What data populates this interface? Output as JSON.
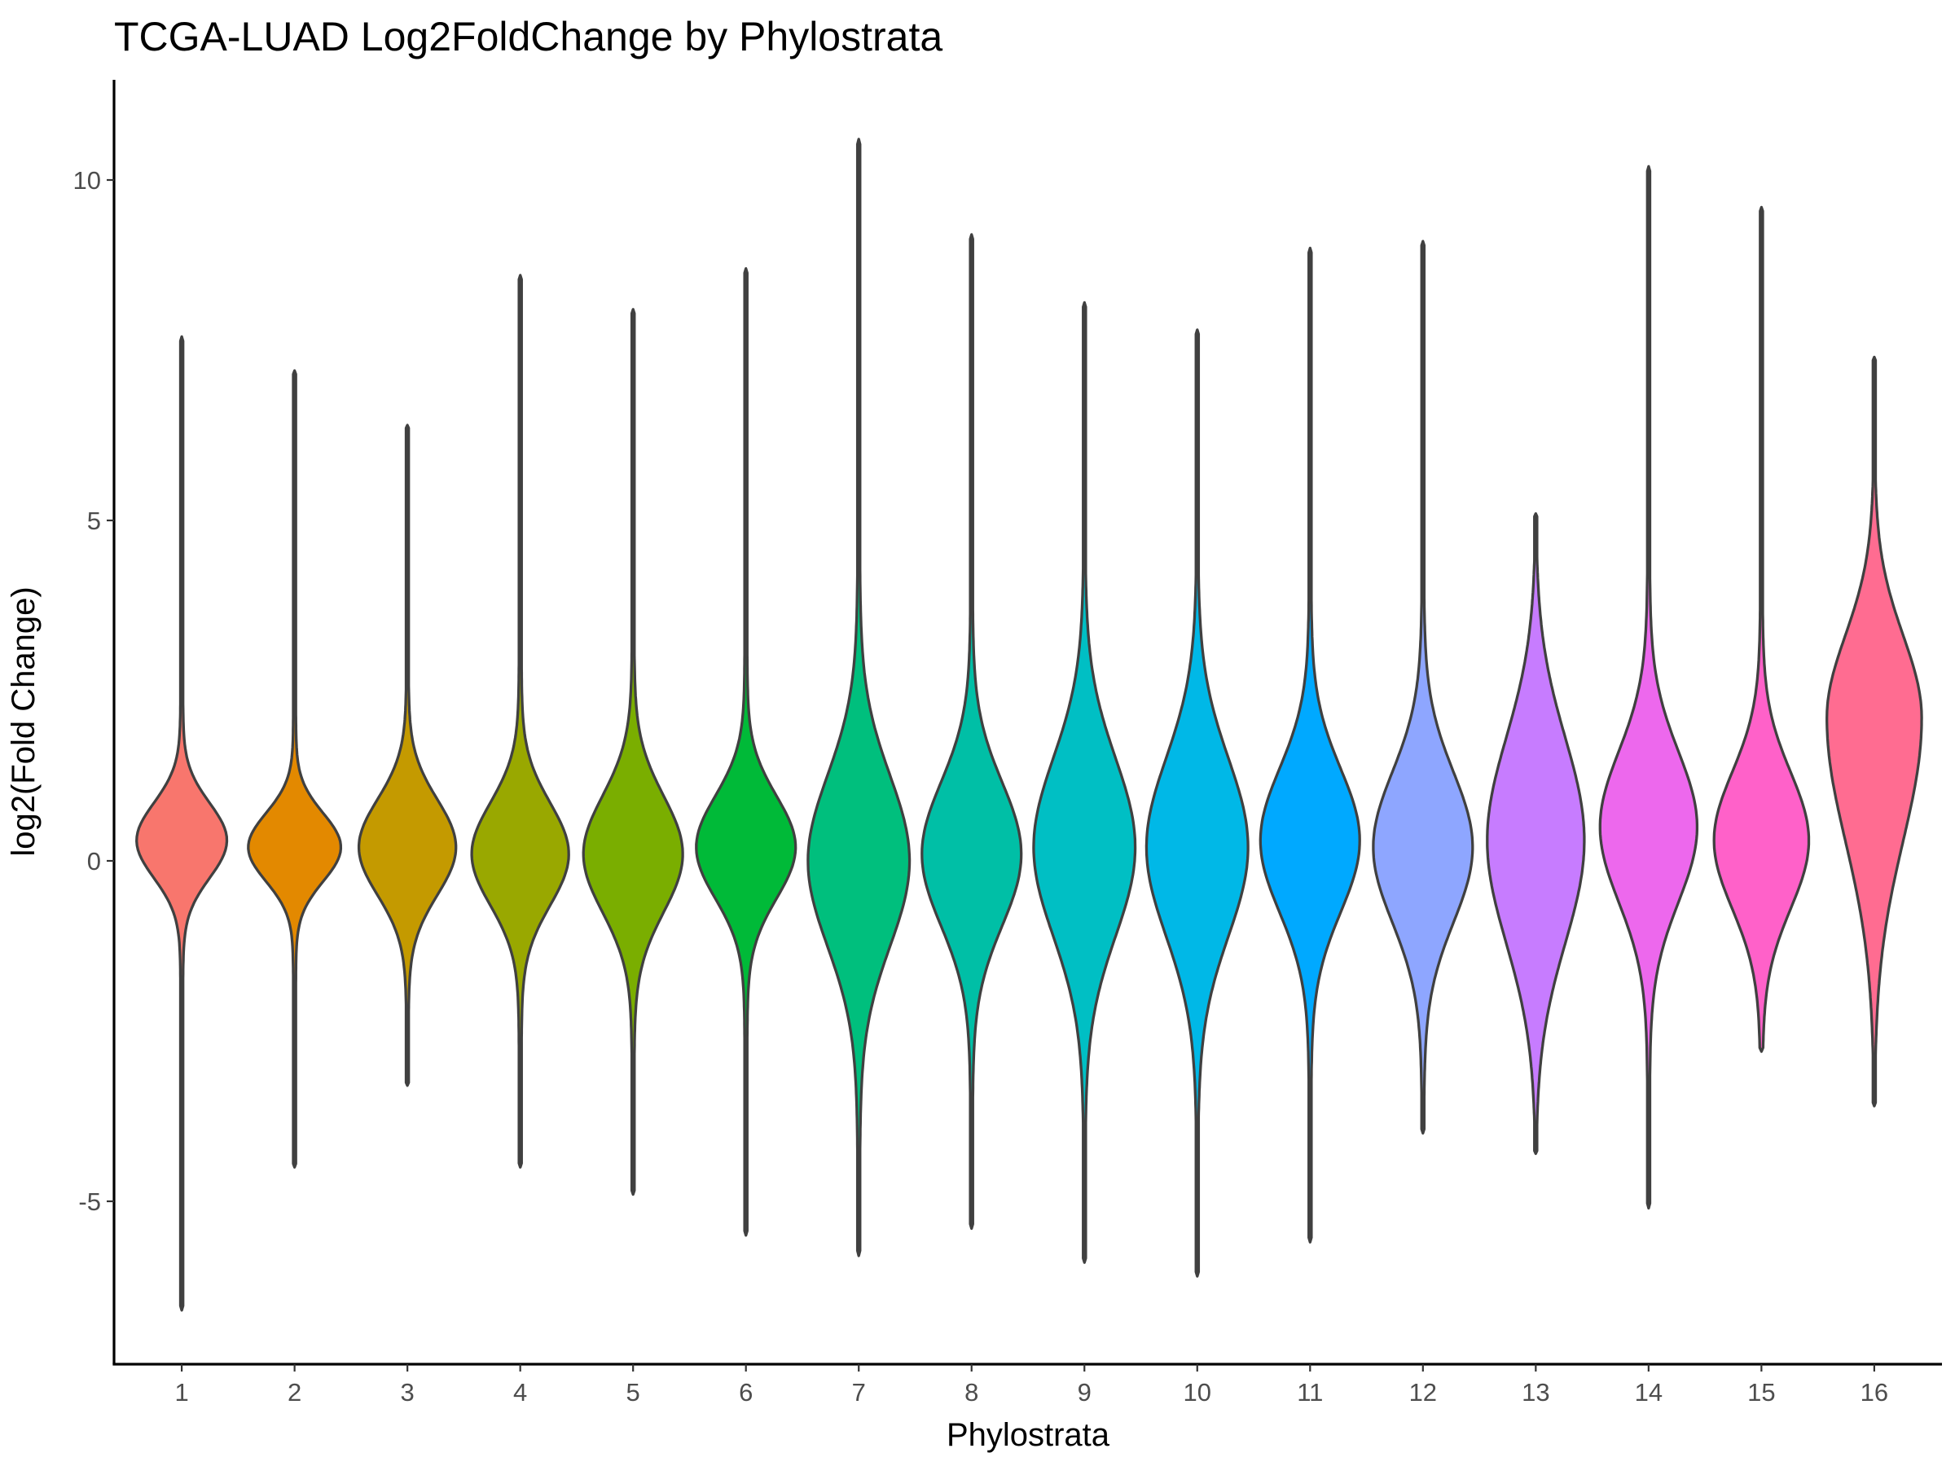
{
  "chart_data": {
    "type": "violin",
    "title": "TCGA-LUAD Log2FoldChange by Phylostrata",
    "xlabel": "Phylostrata",
    "ylabel": "log2(Fold Change)",
    "ylim": [
      -7.2,
      11.6
    ],
    "yticks": [
      10,
      5,
      0,
      -5
    ],
    "ytick_labels": [
      "10",
      "5",
      "0",
      "-5"
    ],
    "grid": false,
    "legend": "none",
    "categories": [
      "1",
      "2",
      "3",
      "4",
      "5",
      "6",
      "7",
      "8",
      "9",
      "10",
      "11",
      "12",
      "13",
      "14",
      "15",
      "16"
    ],
    "series": [
      {
        "category": "1",
        "color": "#F8766D",
        "min": -6.6,
        "max": 7.7,
        "mode": 0.3,
        "spread": 0.55,
        "upper_spread": 0.0,
        "peak_halfwidth": 0.4
      },
      {
        "category": "2",
        "color": "#E38900",
        "min": -4.5,
        "max": 7.2,
        "mode": 0.2,
        "spread": 0.5,
        "upper_spread": 0.0,
        "peak_halfwidth": 0.41
      },
      {
        "category": "3",
        "color": "#C49A00",
        "min": -3.3,
        "max": 6.4,
        "mode": 0.2,
        "spread": 0.7,
        "upper_spread": 0.0,
        "peak_halfwidth": 0.43
      },
      {
        "category": "4",
        "color": "#99A800",
        "min": -4.5,
        "max": 8.6,
        "mode": 0.1,
        "spread": 0.75,
        "upper_spread": 0.0,
        "peak_halfwidth": 0.43
      },
      {
        "category": "5",
        "color": "#7AAE00",
        "min": -4.9,
        "max": 8.1,
        "mode": 0.1,
        "spread": 0.85,
        "upper_spread": 0.0,
        "peak_halfwidth": 0.44
      },
      {
        "category": "6",
        "color": "#00BA38",
        "min": -5.5,
        "max": 8.7,
        "mode": 0.2,
        "spread": 0.75,
        "upper_spread": 0.0,
        "peak_halfwidth": 0.44
      },
      {
        "category": "7",
        "color": "#00BF7D",
        "min": -5.8,
        "max": 10.6,
        "mode": 0.0,
        "spread": 1.25,
        "upper_spread": 0.0,
        "peak_halfwidth": 0.45
      },
      {
        "category": "8",
        "color": "#00BFA6",
        "min": -5.4,
        "max": 9.2,
        "mode": 0.1,
        "spread": 1.05,
        "upper_spread": 0.0,
        "peak_halfwidth": 0.44
      },
      {
        "category": "9",
        "color": "#00BFC4",
        "min": -5.9,
        "max": 8.2,
        "mode": 0.2,
        "spread": 1.3,
        "upper_spread": 0.0,
        "peak_halfwidth": 0.45
      },
      {
        "category": "10",
        "color": "#00B8E7",
        "min": -6.1,
        "max": 7.8,
        "mode": 0.2,
        "spread": 1.3,
        "upper_spread": 0.0,
        "peak_halfwidth": 0.45
      },
      {
        "category": "11",
        "color": "#00A9FF",
        "min": -5.6,
        "max": 9.0,
        "mode": 0.3,
        "spread": 1.05,
        "upper_spread": 0.0,
        "peak_halfwidth": 0.44
      },
      {
        "category": "12",
        "color": "#8EA6FF",
        "min": -4.0,
        "max": 9.1,
        "mode": 0.2,
        "spread": 1.1,
        "upper_spread": 0.0,
        "peak_halfwidth": 0.44
      },
      {
        "category": "13",
        "color": "#C77CFF",
        "min": -4.3,
        "max": 5.1,
        "mode": 0.3,
        "spread": 1.5,
        "upper_spread": 0.0,
        "peak_halfwidth": 0.43
      },
      {
        "category": "14",
        "color": "#ED68ED",
        "min": -5.1,
        "max": 10.2,
        "mode": 0.5,
        "spread": 1.1,
        "upper_spread": 0.0,
        "peak_halfwidth": 0.43
      },
      {
        "category": "15",
        "color": "#FF61C9",
        "min": -2.8,
        "max": 9.6,
        "mode": 0.3,
        "spread": 1.0,
        "upper_spread": 0.0,
        "peak_halfwidth": 0.42
      },
      {
        "category": "16",
        "color": "#FF6C91",
        "min": -3.6,
        "max": 7.4,
        "mode": 2.1,
        "spread": 1.8,
        "upper_spread": 1.2,
        "peak_halfwidth": 0.42
      }
    ]
  }
}
